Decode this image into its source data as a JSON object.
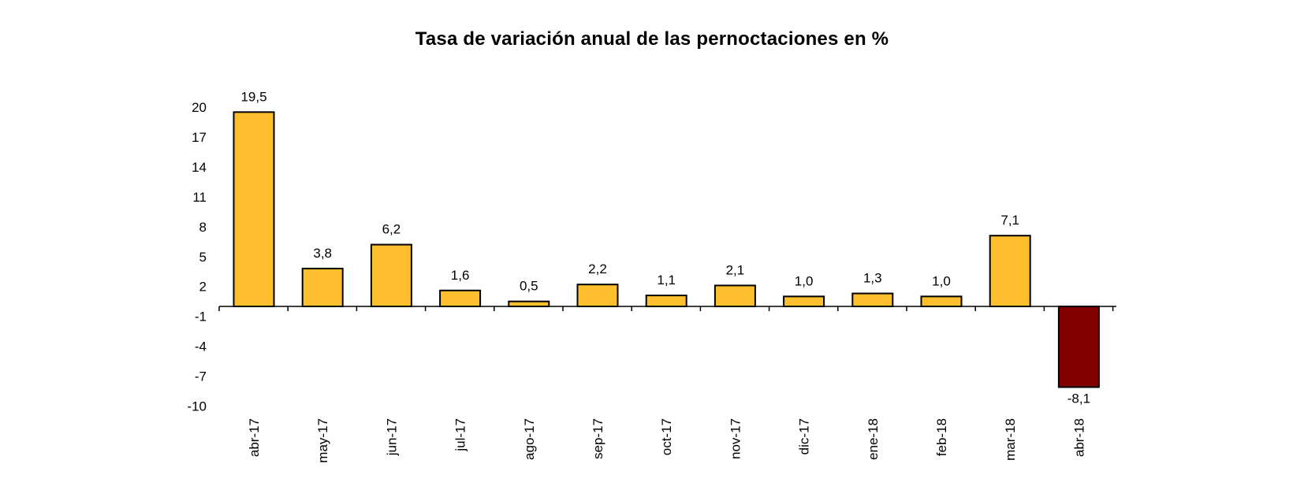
{
  "chart_data": {
    "type": "bar",
    "title": "Tasa de variación anual de las pernoctaciones en %",
    "xlabel": "",
    "ylabel": "",
    "categories": [
      "abr-17",
      "may-17",
      "jun-17",
      "jul-17",
      "ago-17",
      "sep-17",
      "oct-17",
      "nov-17",
      "dic-17",
      "ene-18",
      "feb-18",
      "mar-18",
      "abr-18"
    ],
    "series": [
      {
        "values": [
          19.5,
          3.8,
          6.2,
          1.6,
          0.5,
          2.2,
          1.1,
          2.1,
          1.0,
          1.3,
          1.0,
          7.1,
          -8.1
        ]
      }
    ],
    "data_labels": [
      "19,5",
      "3,8",
      "6,2",
      "1,6",
      "0,5",
      "2,2",
      "1,1",
      "2,1",
      "1,0",
      "1,3",
      "1,0",
      "7,1",
      "-8,1"
    ],
    "yticks": [
      20,
      17,
      14,
      11,
      8,
      5,
      2,
      -1,
      -4,
      -7,
      -10
    ],
    "ylim": [
      -10,
      20
    ],
    "grid": false,
    "legend": "none",
    "colors": {
      "positive": "#FDBF2D",
      "highlight": "#800000",
      "outline": "#000000"
    }
  }
}
